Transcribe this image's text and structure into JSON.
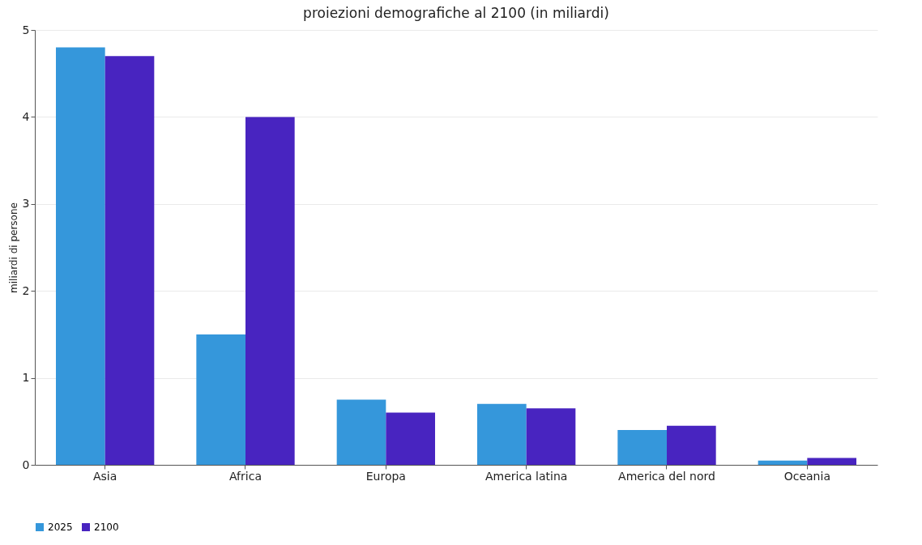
{
  "chart_data": {
    "type": "bar",
    "title": "proiezioni demografiche al 2100 (in miliardi)",
    "ylabel": "miliardi di persone",
    "categories": [
      "Asia",
      "Africa",
      "Europa",
      "America latina",
      "America del nord",
      "Oceania"
    ],
    "series": [
      {
        "name": "2025",
        "color": "#3597db",
        "values": [
          4.8,
          1.5,
          0.75,
          0.7,
          0.4,
          0.05
        ]
      },
      {
        "name": "2100",
        "color": "#4824c0",
        "values": [
          4.7,
          4.0,
          0.6,
          0.65,
          0.45,
          0.08
        ]
      }
    ],
    "ylim": [
      0,
      5
    ],
    "yticks": [
      0,
      1,
      2,
      3,
      4,
      5
    ],
    "grid": "y",
    "legend": "bottom"
  }
}
